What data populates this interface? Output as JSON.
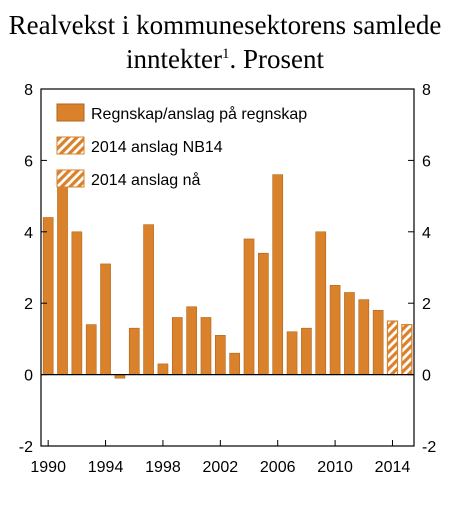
{
  "title": {
    "line1": "Realvekst i kommunesektorens samlede",
    "line2_main": "inntekter",
    "line2_sup": "1",
    "line2_rest": ". Prosent"
  },
  "chart_data": {
    "type": "bar",
    "categories": [
      "1990",
      "1991",
      "1992",
      "1993",
      "1994",
      "1995",
      "1996",
      "1997",
      "1998",
      "1999",
      "2000",
      "2001",
      "2002",
      "2003",
      "2004",
      "2005",
      "2006",
      "2007",
      "2008",
      "2009",
      "2010",
      "2011",
      "2012",
      "2013",
      "2014",
      "2014"
    ],
    "values": [
      4.4,
      5.3,
      4.0,
      1.4,
      3.1,
      -0.1,
      1.3,
      4.2,
      0.3,
      1.6,
      1.9,
      1.6,
      1.1,
      0.6,
      3.8,
      3.4,
      5.6,
      1.2,
      1.3,
      4.0,
      2.5,
      2.3,
      2.1,
      1.8,
      1.5,
      1.4
    ],
    "bar_series": [
      0,
      0,
      0,
      0,
      0,
      0,
      0,
      0,
      0,
      0,
      0,
      0,
      0,
      0,
      0,
      0,
      0,
      0,
      0,
      0,
      0,
      0,
      0,
      0,
      1,
      2
    ],
    "series": [
      {
        "name": "Regnskap/anslag på regnskap",
        "style": "solid"
      },
      {
        "name": "2014 anslag NB14",
        "style": "hatched"
      },
      {
        "name": "2014 anslag nå",
        "style": "hatched-white"
      }
    ],
    "x_tick_labels": [
      "1990",
      "1994",
      "1998",
      "2002",
      "2006",
      "2010",
      "2014"
    ],
    "x_tick_every": 4,
    "y_ticks": [
      -2,
      0,
      2,
      4,
      6,
      8
    ],
    "ylim": [
      -2,
      8
    ],
    "grid": false,
    "legend_position": "top-left",
    "colors": {
      "bar": "#d9822b",
      "bar_stroke": "#b0651a",
      "axis": "#000000"
    }
  }
}
